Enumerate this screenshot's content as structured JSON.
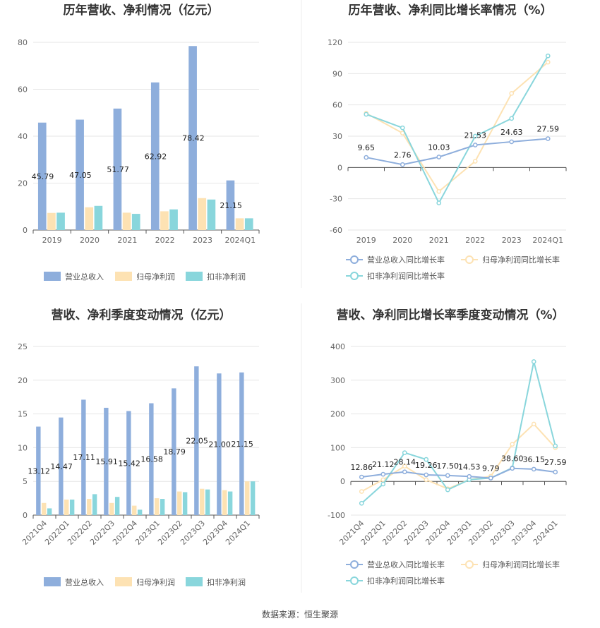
{
  "source_label": "数据来源：恒生聚源",
  "colors": {
    "revenue": "#8eaedc",
    "net_profit": "#fde2b3",
    "deducted_profit": "#89d6dc",
    "rev_line": "#8eaedc",
    "np_line": "#fde2b3",
    "dp_line": "#89d6dc",
    "grid": "#e6e6e6",
    "axis": "#555555"
  },
  "chart_data": [
    {
      "id": "annual-bar",
      "type": "bar",
      "title": "历年营收、净利情况（亿元）",
      "categories": [
        "2019",
        "2020",
        "2021",
        "2022",
        "2023",
        "2024Q1"
      ],
      "ylim": [
        0,
        80
      ],
      "yticks": [
        0,
        20,
        40,
        60,
        80
      ],
      "series": [
        {
          "name": "营业总收入",
          "values": [
            45.79,
            47.05,
            51.77,
            62.92,
            78.42,
            21.15
          ],
          "labels": [
            "45.79",
            "47.05",
            "51.77",
            "62.92",
            "78.42",
            "21.15"
          ]
        },
        {
          "name": "归母净利润",
          "values": [
            7.3,
            9.7,
            7.4,
            8.0,
            13.6,
            5.0
          ]
        },
        {
          "name": "扣非净利润",
          "values": [
            7.4,
            10.3,
            6.9,
            8.8,
            13.0,
            5.0
          ]
        }
      ]
    },
    {
      "id": "annual-line",
      "type": "line",
      "title": "历年营收、净利同比增长率情况（%）",
      "categories": [
        "2019",
        "2020",
        "2021",
        "2022",
        "2023",
        "2024Q1"
      ],
      "ylim": [
        -60,
        120
      ],
      "yticks": [
        -60,
        -30,
        0,
        30,
        60,
        90,
        120
      ],
      "series": [
        {
          "name": "营业总收入同比增长率",
          "values": [
            9.65,
            2.76,
            10.03,
            21.53,
            24.63,
            27.59
          ],
          "labels": [
            "9.65",
            "2.76",
            "10.03",
            "21.53",
            "24.63",
            "27.59"
          ]
        },
        {
          "name": "归母净利润同比增长率",
          "values": [
            52,
            33,
            -23,
            6,
            71,
            101
          ]
        },
        {
          "name": "扣非净利润同比增长率",
          "values": [
            51,
            38,
            -34,
            30,
            47,
            107
          ]
        }
      ]
    },
    {
      "id": "quarter-bar",
      "type": "bar",
      "title": "营收、净利季度变动情况（亿元）",
      "categories": [
        "2021Q4",
        "2022Q1",
        "2022Q2",
        "2022Q3",
        "2022Q4",
        "2023Q1",
        "2023Q2",
        "2023Q3",
        "2023Q4",
        "2024Q1"
      ],
      "ylim": [
        0,
        25
      ],
      "yticks": [
        0,
        5,
        10,
        15,
        20,
        25
      ],
      "series": [
        {
          "name": "营业总收入",
          "values": [
            13.12,
            14.47,
            17.11,
            15.91,
            15.42,
            16.58,
            18.79,
            22.05,
            21.0,
            21.15
          ],
          "labels": [
            "13.12",
            "14.47",
            "17.11",
            "15.91",
            "15.42",
            "16.58",
            "18.79",
            "22.05",
            "21.00",
            "21.15"
          ]
        },
        {
          "name": "归母净利润",
          "values": [
            1.8,
            2.3,
            2.4,
            1.8,
            1.4,
            2.5,
            3.5,
            3.9,
            3.7,
            5.0
          ]
        },
        {
          "name": "扣非净利润",
          "values": [
            1.0,
            2.3,
            3.1,
            2.7,
            0.8,
            2.4,
            3.4,
            3.8,
            3.5,
            5.0
          ]
        }
      ]
    },
    {
      "id": "quarter-line",
      "type": "line",
      "title": "营收、净利同比增长率季度变动情况（%）",
      "categories": [
        "2021Q4",
        "2022Q1",
        "2022Q2",
        "2022Q3",
        "2022Q4",
        "2023Q1",
        "2023Q2",
        "2023Q3",
        "2023Q4",
        "2024Q1"
      ],
      "ylim": [
        -100,
        400
      ],
      "yticks": [
        -100,
        0,
        100,
        200,
        300,
        400
      ],
      "series": [
        {
          "name": "营业总收入同比增长率",
          "values": [
            12.86,
            21.12,
            28.14,
            19.26,
            17.5,
            14.53,
            9.79,
            38.6,
            36.15,
            27.59
          ],
          "labels": [
            "12.86",
            "21.12",
            "28.14",
            "19.26",
            "17.50",
            "14.53",
            "9.79",
            "38.60",
            "36.15",
            "27.59"
          ]
        },
        {
          "name": "归母净利润同比增长率",
          "values": [
            -30,
            5,
            45,
            5,
            -22,
            5,
            15,
            110,
            170,
            100
          ]
        },
        {
          "name": "扣非净利润同比增长率",
          "values": [
            -65,
            -8,
            85,
            65,
            -25,
            5,
            10,
            40,
            355,
            105
          ]
        }
      ]
    }
  ]
}
